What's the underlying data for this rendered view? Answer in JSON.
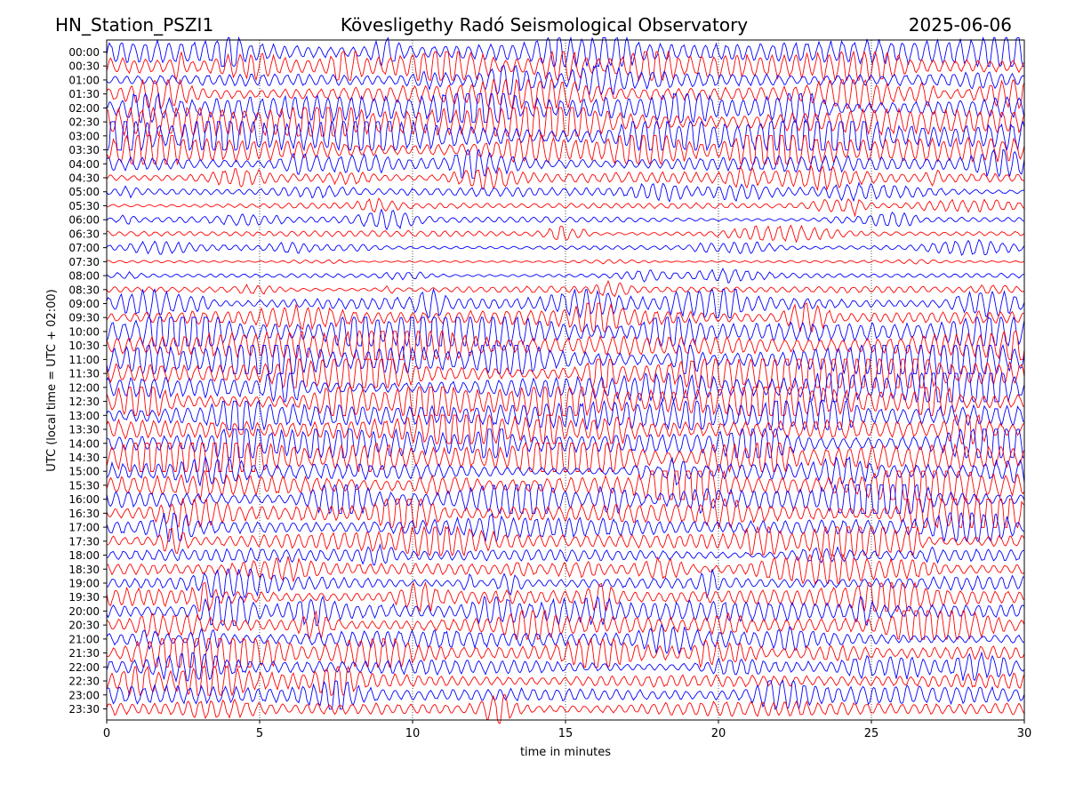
{
  "header": {
    "station": "HN_Station_PSZI1",
    "observatory": "Kövesligethy Radó Seismological Observatory",
    "date": "2025-06-06"
  },
  "chart_data": {
    "type": "line",
    "title": "Kövesligethy Radó Seismological Observatory",
    "xlabel": "time in minutes",
    "ylabel": "UTC (local time = UTC + 02:00)",
    "xlim": [
      0,
      30
    ],
    "xticks": [
      0,
      5,
      10,
      15,
      20,
      25,
      30
    ],
    "grid": "vertical dotted at 5-minute intervals",
    "trace_colors": [
      "#0000ff",
      "#ff0000"
    ],
    "rows": [
      {
        "label": "00:00",
        "level": 0.75
      },
      {
        "label": "00:30",
        "level": 0.7
      },
      {
        "label": "01:00",
        "level": 0.5
      },
      {
        "label": "01:30",
        "level": 0.55
      },
      {
        "label": "02:00",
        "level": 0.8
      },
      {
        "label": "02:30",
        "level": 1.0
      },
      {
        "label": "03:00",
        "level": 1.0
      },
      {
        "label": "03:30",
        "level": 0.75
      },
      {
        "label": "04:00",
        "level": 0.45
      },
      {
        "label": "04:30",
        "level": 0.3
      },
      {
        "label": "05:00",
        "level": 0.25
      },
      {
        "label": "05:30",
        "level": 0.15
      },
      {
        "label": "06:00",
        "level": 0.15
      },
      {
        "label": "06:30",
        "level": 0.15
      },
      {
        "label": "07:00",
        "level": 0.12
      },
      {
        "label": "07:30",
        "level": 0.02
      },
      {
        "label": "08:00",
        "level": 0.12
      },
      {
        "label": "08:30",
        "level": 0.18
      },
      {
        "label": "09:00",
        "level": 0.4
      },
      {
        "label": "09:30",
        "level": 0.5
      },
      {
        "label": "10:00",
        "level": 0.8
      },
      {
        "label": "10:30",
        "level": 0.85
      },
      {
        "label": "11:00",
        "level": 0.75
      },
      {
        "label": "11:30",
        "level": 0.8
      },
      {
        "label": "12:00",
        "level": 0.75
      },
      {
        "label": "12:30",
        "level": 0.9
      },
      {
        "label": "13:00",
        "level": 0.9
      },
      {
        "label": "13:30",
        "level": 0.8
      },
      {
        "label": "14:00",
        "level": 0.85
      },
      {
        "label": "14:30",
        "level": 0.85
      },
      {
        "label": "15:00",
        "level": 0.55
      },
      {
        "label": "15:30",
        "level": 0.7
      },
      {
        "label": "16:00",
        "level": 0.6
      },
      {
        "label": "16:30",
        "level": 0.6
      },
      {
        "label": "17:00",
        "level": 0.6
      },
      {
        "label": "17:30",
        "level": 0.55
      },
      {
        "label": "18:00",
        "level": 0.4
      },
      {
        "label": "18:30",
        "level": 0.35
      },
      {
        "label": "19:00",
        "level": 0.4
      },
      {
        "label": "19:30",
        "level": 0.55
      },
      {
        "label": "20:00",
        "level": 0.6
      },
      {
        "label": "20:30",
        "level": 0.55
      },
      {
        "label": "21:00",
        "level": 0.55
      },
      {
        "label": "21:30",
        "level": 0.5
      },
      {
        "label": "22:00",
        "level": 0.45
      },
      {
        "label": "22:30",
        "level": 0.5
      },
      {
        "label": "23:00",
        "level": 0.55
      },
      {
        "label": "23:30",
        "level": 0.45
      }
    ]
  }
}
